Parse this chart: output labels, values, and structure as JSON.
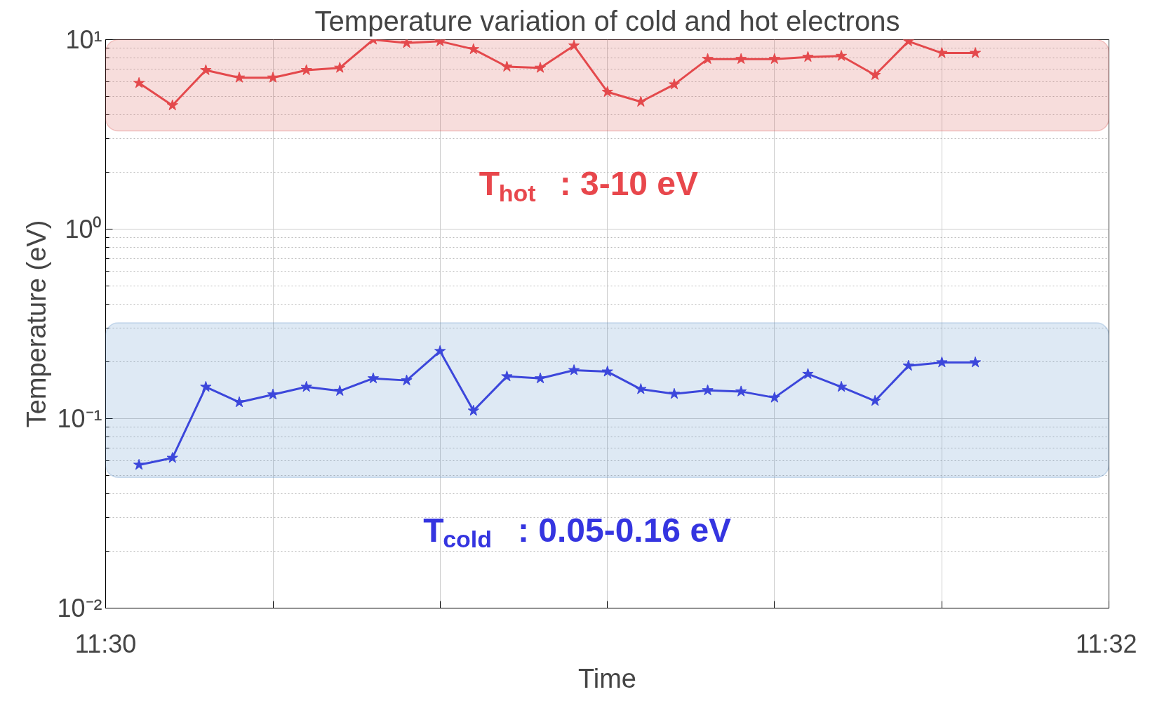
{
  "chart_data": {
    "type": "line",
    "title": "Temperature variation of cold and hot electrons",
    "xlabel": "Time",
    "ylabel": "Temperature (eV)",
    "x": [
      11.50111,
      11.50222,
      11.50333,
      11.50444,
      11.50556,
      11.50667,
      11.50778,
      11.50889,
      11.51,
      11.51111,
      11.51222,
      11.51333,
      11.51444,
      11.51556,
      11.51667,
      11.51778,
      11.51889,
      11.52,
      11.52111,
      11.52222,
      11.52333,
      11.52444,
      11.52556,
      11.52667,
      11.52778,
      11.52889
    ],
    "series": [
      {
        "color": "#e8474c",
        "values": [
          5.9,
          4.5,
          6.9,
          6.3,
          6.3,
          6.9,
          7.1,
          10,
          9.6,
          9.8,
          8.9,
          7.2,
          7.1,
          9.3,
          5.3,
          4.7,
          5.8,
          7.9,
          7.9,
          7.9,
          8.1,
          8.2,
          6.5,
          9.8,
          8.5,
          8.5
        ]
      },
      {
        "color": "#3535e0",
        "values": [
          0.057,
          0.062,
          0.147,
          0.122,
          0.134,
          0.147,
          0.14,
          0.163,
          0.159,
          0.227,
          0.11,
          0.167,
          0.163,
          0.18,
          0.177,
          0.143,
          0.135,
          0.141,
          0.139,
          0.129,
          0.172,
          0.147,
          0.124,
          0.19,
          0.198,
          0.198
        ]
      }
    ],
    "bands": [
      {
        "axis": "y",
        "from": 3.3,
        "to": 10,
        "color": "#d9534f"
      },
      {
        "axis": "y",
        "from": 0.049,
        "to": 0.32,
        "color": "#5a8fc8"
      }
    ],
    "annotations": [
      "T$_{hot}$ : 3-10 eV",
      "T$_{cold}$ : 0.05-0.16 eV"
    ],
    "xlim": [
      11.5,
      11.53333
    ],
    "xticks": [
      {
        "value": 11.5,
        "label": "11:30"
      },
      {
        "value": 11.50556,
        "label": null
      },
      {
        "value": 11.51111,
        "label": null
      },
      {
        "value": 11.51667,
        "label": null
      },
      {
        "value": 11.52222,
        "label": null
      },
      {
        "value": 11.52778,
        "label": null
      },
      {
        "value": 11.53333,
        "label": "11:32"
      }
    ],
    "ylim": [
      0.01,
      10
    ],
    "yticks": [
      {
        "value": 0.01,
        "label": "10⁻²"
      },
      {
        "value": 0.1,
        "label": "10⁻¹"
      },
      {
        "value": 1,
        "label": "10⁰"
      },
      {
        "value": 10,
        "label": "10¹"
      }
    ],
    "log": true,
    "grid": true,
    "marker": "star",
    "line_style": "solid"
  }
}
